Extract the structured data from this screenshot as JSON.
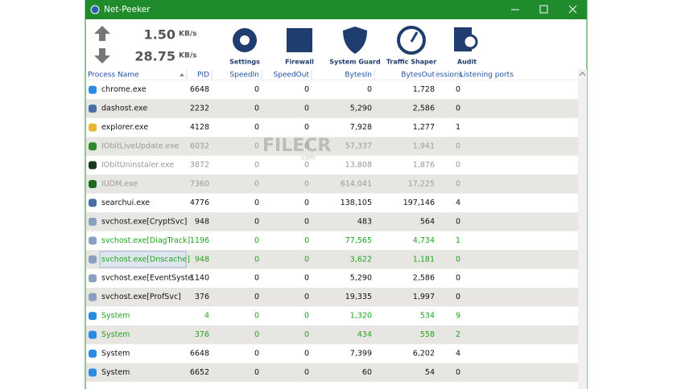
{
  "window": {
    "title": "Net-Peeker"
  },
  "toolbar": {
    "speed_in": "1.50",
    "speed_in_unit": "KB/s",
    "speed_out": "28.75",
    "speed_out_unit": "KB/s",
    "buttons": [
      "Settings",
      "Firewall",
      "System Guard",
      "Traffic Shaper",
      "Audit"
    ]
  },
  "watermark": {
    "text": "FILECR",
    "suffix": ".com"
  },
  "table": {
    "columns": [
      "Process Name",
      "PID",
      "SpeedIn",
      "SpeedOut",
      "BytesIn",
      "BytesOut",
      "essions",
      "Listening ports"
    ],
    "rows": [
      {
        "cells": [
          "chrome.exe",
          "6648",
          "0",
          "0",
          "0",
          "1,728",
          "0"
        ],
        "color": "#111111"
      },
      {
        "cells": [
          "dashost.exe",
          "2232",
          "0",
          "0",
          "5,290",
          "2,586",
          "0"
        ],
        "color": "#111111"
      },
      {
        "cells": [
          "explorer.exe",
          "4128",
          "0",
          "0",
          "7,928",
          "1,277",
          "1"
        ],
        "color": "#111111"
      },
      {
        "cells": [
          "IObitLiveUpdate.exe",
          "6032",
          "0",
          "0",
          "57,337",
          "1,941",
          "0"
        ],
        "color": "#9a9a9a"
      },
      {
        "cells": [
          "IObitUninstaler.exe",
          "3872",
          "0",
          "0",
          "13,808",
          "1,876",
          "0"
        ],
        "color": "#9a9a9a"
      },
      {
        "cells": [
          "IUDM.exe",
          "7360",
          "0",
          "0",
          "614,041",
          "17,225",
          "0"
        ],
        "color": "#9a9a9a"
      },
      {
        "cells": [
          "searchui.exe",
          "4776",
          "0",
          "0",
          "138,105",
          "197,146",
          "4"
        ],
        "color": "#111111"
      },
      {
        "cells": [
          "svchost.exe[CryptSvc]",
          "948",
          "0",
          "0",
          "483",
          "564",
          "0"
        ],
        "color": "#111111"
      },
      {
        "cells": [
          "svchost.exe[DiagTrack]",
          "1196",
          "0",
          "0",
          "77,565",
          "4,734",
          "1"
        ],
        "color": "#1ea51e"
      },
      {
        "cells": [
          "svchost.exe[Dnscache]",
          "948",
          "0",
          "0",
          "3,622",
          "1,181",
          "0"
        ],
        "color": "#1ea51e"
      },
      {
        "cells": [
          "svchost.exe[EventSyste...",
          "1140",
          "0",
          "0",
          "5,290",
          "2,586",
          "0"
        ],
        "color": "#111111"
      },
      {
        "cells": [
          "svchost.exe[ProfSvc]",
          "376",
          "0",
          "0",
          "19,335",
          "1,997",
          "0"
        ],
        "color": "#111111"
      },
      {
        "cells": [
          "System",
          "4",
          "0",
          "0",
          "1,320",
          "534",
          "9"
        ],
        "color": "#1ea51e"
      },
      {
        "cells": [
          "System",
          "376",
          "0",
          "0",
          "434",
          "558",
          "2"
        ],
        "color": "#1ea51e"
      },
      {
        "cells": [
          "System",
          "6648",
          "0",
          "0",
          "7,399",
          "6,202",
          "4"
        ],
        "color": "#111111"
      },
      {
        "cells": [
          "System",
          "6652",
          "0",
          "0",
          "60",
          "54",
          "0"
        ],
        "color": "#111111"
      }
    ]
  }
}
